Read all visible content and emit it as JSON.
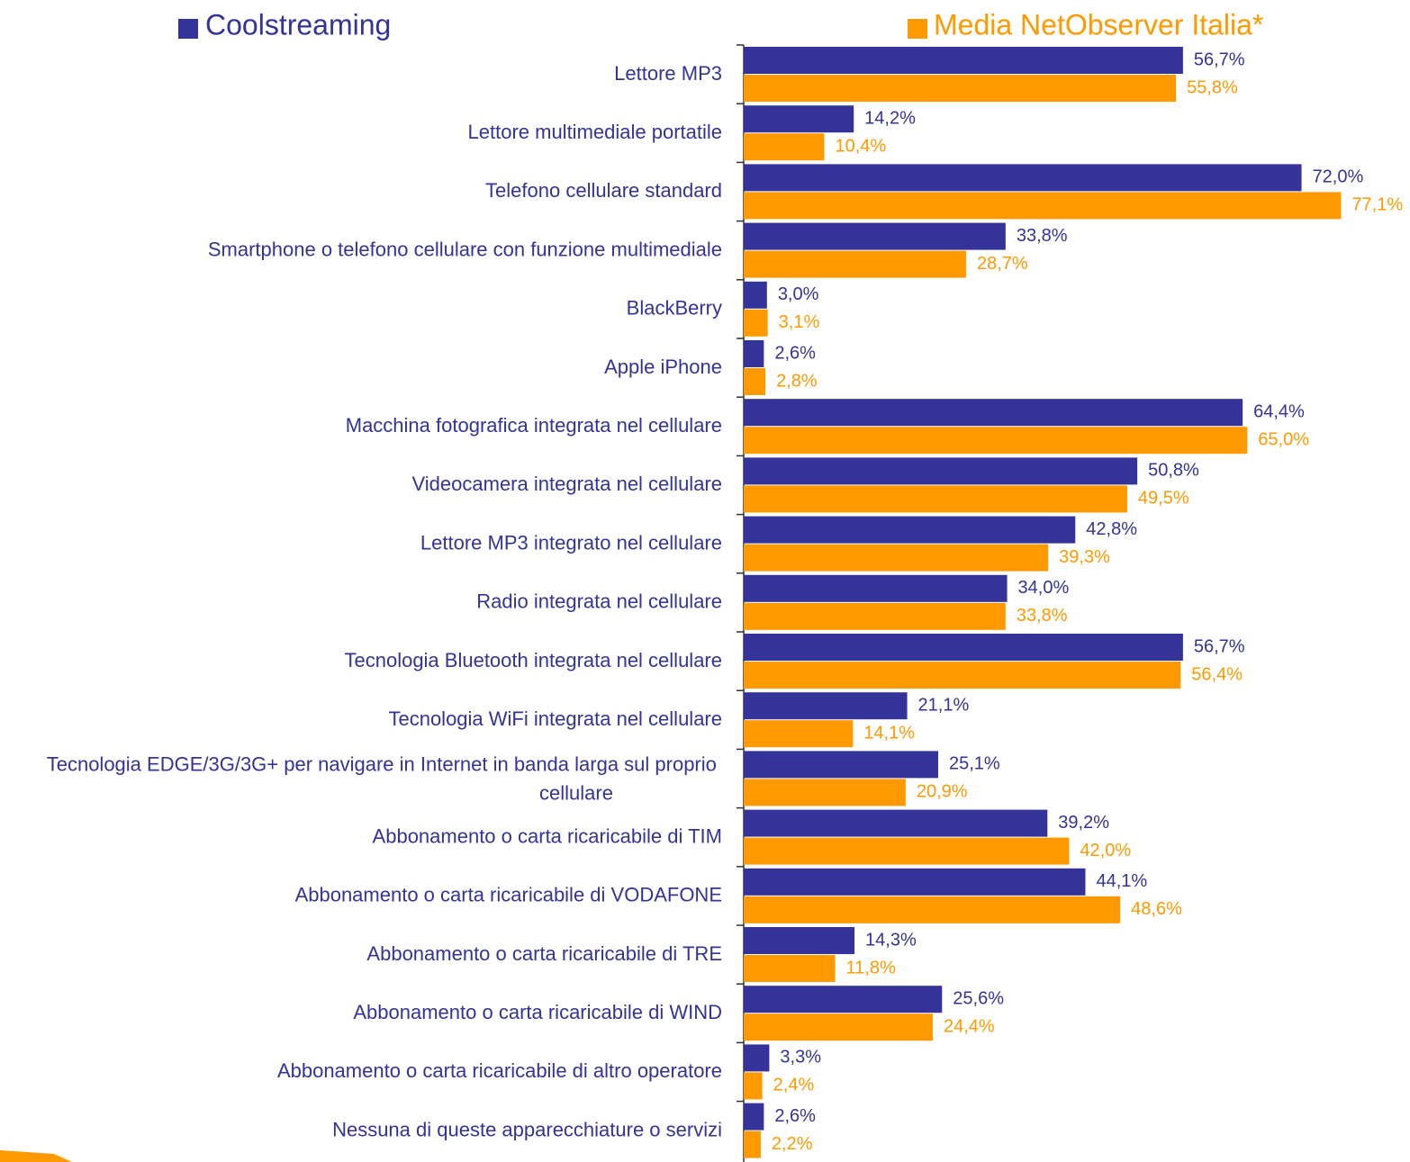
{
  "chart_data": {
    "type": "bar",
    "orientation": "horizontal",
    "categories": [
      "Lettore MP3",
      "Lettore multimediale portatile",
      "Telefono cellulare standard",
      "Smartphone o telefono cellulare con funzione multimediale",
      "BlackBerry",
      "Apple iPhone",
      "Macchina fotografica integrata nel cellulare",
      "Videocamera integrata nel cellulare",
      "Lettore MP3 integrato nel cellulare",
      "Radio integrata nel cellulare",
      "Tecnologia Bluetooth integrata nel cellulare",
      "Tecnologia WiFi integrata nel cellulare",
      "Tecnologia EDGE/3G/3G+ per navigare in Internet in banda larga sul proprio cellulare",
      "Abbonamento o carta ricaricabile di TIM",
      "Abbonamento o carta ricaricabile di VODAFONE",
      "Abbonamento o carta ricaricabile di TRE",
      "Abbonamento o carta ricaricabile di WIND",
      "Abbonamento o carta ricaricabile di altro operatore",
      "Nessuna di queste apparecchiature o servizi"
    ],
    "series": [
      {
        "name": "Coolstreaming",
        "color": "#333399",
        "values": [
          56.7,
          14.2,
          72.0,
          33.8,
          3.0,
          2.6,
          64.4,
          50.8,
          42.8,
          34.0,
          56.7,
          21.1,
          25.1,
          39.2,
          44.1,
          14.3,
          25.6,
          3.3,
          2.6
        ],
        "value_labels": [
          "56,7%",
          "14,2%",
          "72,0%",
          "33,8%",
          "3,0%",
          "2,6%",
          "64,4%",
          "50,8%",
          "42,8%",
          "34,0%",
          "56,7%",
          "21,1%",
          "25,1%",
          "39,2%",
          "44,1%",
          "14,3%",
          "25,6%",
          "3,3%",
          "2,6%"
        ]
      },
      {
        "name": "Media NetObserver Italia*",
        "color": "#ff9900",
        "values": [
          55.8,
          10.4,
          77.1,
          28.7,
          3.1,
          2.8,
          65.0,
          49.5,
          39.3,
          33.8,
          56.4,
          14.1,
          20.9,
          42.0,
          48.6,
          11.8,
          24.4,
          2.4,
          2.2
        ],
        "value_labels": [
          "55,8%",
          "10,4%",
          "77,1%",
          "28,7%",
          "3,1%",
          "2,8%",
          "65,0%",
          "49,5%",
          "39,3%",
          "33,8%",
          "56,4%",
          "14,1%",
          "20,9%",
          "42,0%",
          "48,6%",
          "11,8%",
          "24,4%",
          "2,4%",
          "2,2%"
        ]
      }
    ],
    "xlim": [
      0,
      86
    ]
  }
}
